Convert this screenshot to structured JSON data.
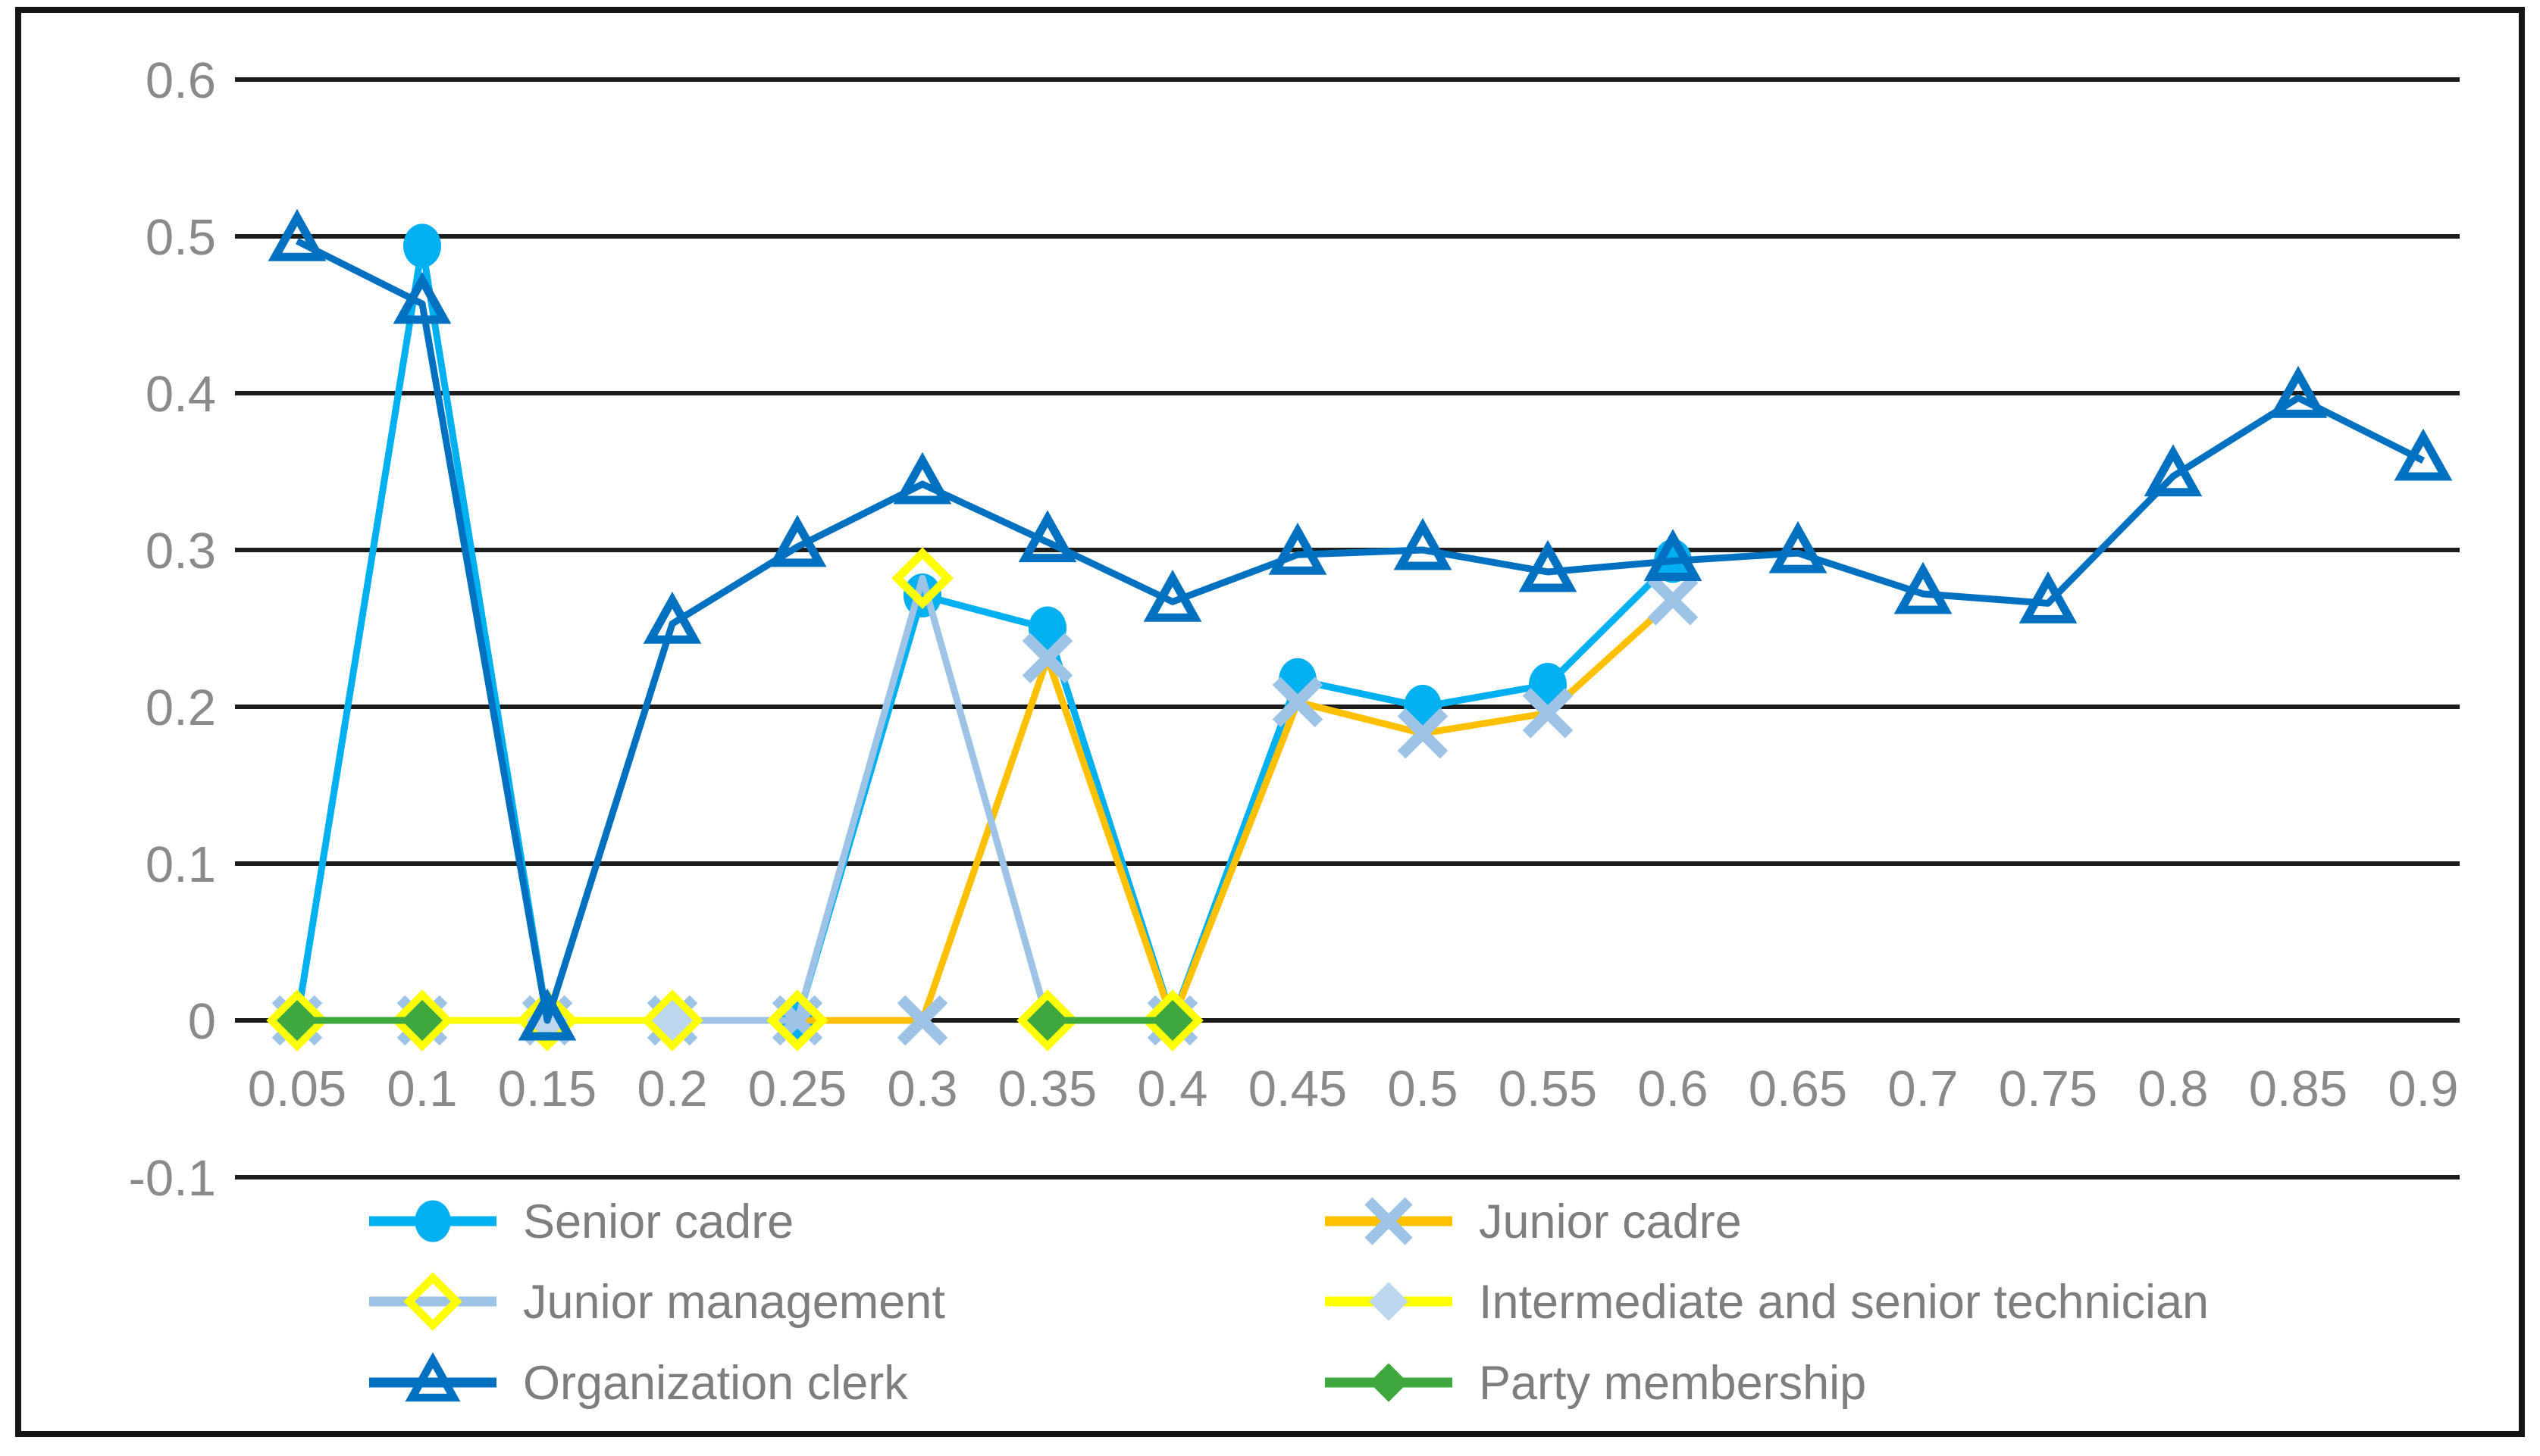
{
  "figure": {
    "background": "#ffffff",
    "border_color": "#161616",
    "grid_color": "#1d1d1d",
    "axis_label_color": "#8a8a8a",
    "legend_text_color": "#7e7e7e"
  },
  "chart_data": {
    "type": "line",
    "title": "",
    "xlabel": "",
    "ylabel": "",
    "grid": true,
    "ylim": [
      -0.1,
      0.6
    ],
    "y_tick_step": 0.1,
    "y_tick_labels": [
      "0.6",
      "0.5",
      "0.4",
      "0.3",
      "0.2",
      "0.1",
      "0",
      "-0.1"
    ],
    "y_tick_values": [
      0.6,
      0.5,
      0.4,
      0.3,
      0.2,
      0.1,
      0,
      -0.1
    ],
    "categories": [
      0.05,
      0.1,
      0.15,
      0.2,
      0.25,
      0.3,
      0.35,
      0.4,
      0.45,
      0.5,
      0.55,
      0.6,
      0.65,
      0.7,
      0.75,
      0.8,
      0.85,
      0.9
    ],
    "x_tick_labels": [
      "0.05",
      "0.1",
      "0.15",
      "0.2",
      "0.25",
      "0.3",
      "0.35",
      "0.4",
      "0.45",
      "0.5",
      "0.55",
      "0.6",
      "0.65",
      "0.7",
      "0.75",
      "0.8",
      "0.85",
      "0.9"
    ],
    "series": [
      {
        "name": "Senior cadre",
        "line_color": "#00B0F0",
        "marker": "circle",
        "marker_color": "#00B0F0",
        "values": [
          0,
          0.494,
          0,
          0,
          0,
          0.271,
          0.25,
          0,
          0.217,
          0.2,
          0.214,
          0.293,
          null,
          null,
          null,
          null,
          null,
          null
        ]
      },
      {
        "name": "Junior cadre",
        "line_color": "#FFC000",
        "marker": "x",
        "marker_color": "#9DC3E6",
        "values": [
          0,
          0,
          0,
          0,
          0,
          0,
          0.231,
          0,
          0.203,
          0.183,
          0.196,
          0.268,
          null,
          null,
          null,
          null,
          null,
          null
        ]
      },
      {
        "name": "Junior management",
        "line_color": "#9DC3E6",
        "marker": "diamond-open",
        "marker_color": "#FFFF00",
        "values": [
          0,
          0,
          0,
          0,
          0,
          0.282,
          0,
          0,
          null,
          null,
          null,
          null,
          null,
          null,
          null,
          null,
          null,
          null
        ]
      },
      {
        "name": "Intermediate and senior technician",
        "line_color": "#FFFF00",
        "marker": "diamond",
        "marker_color": "#BDD7EE",
        "values": [
          0,
          0,
          0,
          0,
          null,
          null,
          null,
          null,
          null,
          null,
          null,
          null,
          null,
          null,
          null,
          null,
          null,
          null
        ]
      },
      {
        "name": "Organization clerk",
        "line_color": "#0070C0",
        "marker": "triangle-open",
        "marker_color": "#0070C0",
        "values": [
          0.497,
          0.457,
          0,
          0.253,
          0.302,
          0.342,
          0.305,
          0.267,
          0.297,
          0.3,
          0.286,
          0.293,
          0.298,
          0.272,
          0.266,
          0.347,
          0.397,
          0.357
        ]
      },
      {
        "name": "Party membership",
        "line_color": "#3EA83E",
        "marker": "diamond",
        "marker_color": "#3EA83E",
        "values": [
          0,
          0,
          null,
          null,
          null,
          null,
          0,
          0,
          null,
          null,
          null,
          null,
          null,
          null,
          null,
          null,
          null,
          null
        ]
      }
    ],
    "legend": {
      "position": "bottom",
      "columns": 2,
      "rows": [
        [
          0,
          1
        ],
        [
          2,
          3
        ],
        [
          4,
          5
        ]
      ]
    }
  }
}
